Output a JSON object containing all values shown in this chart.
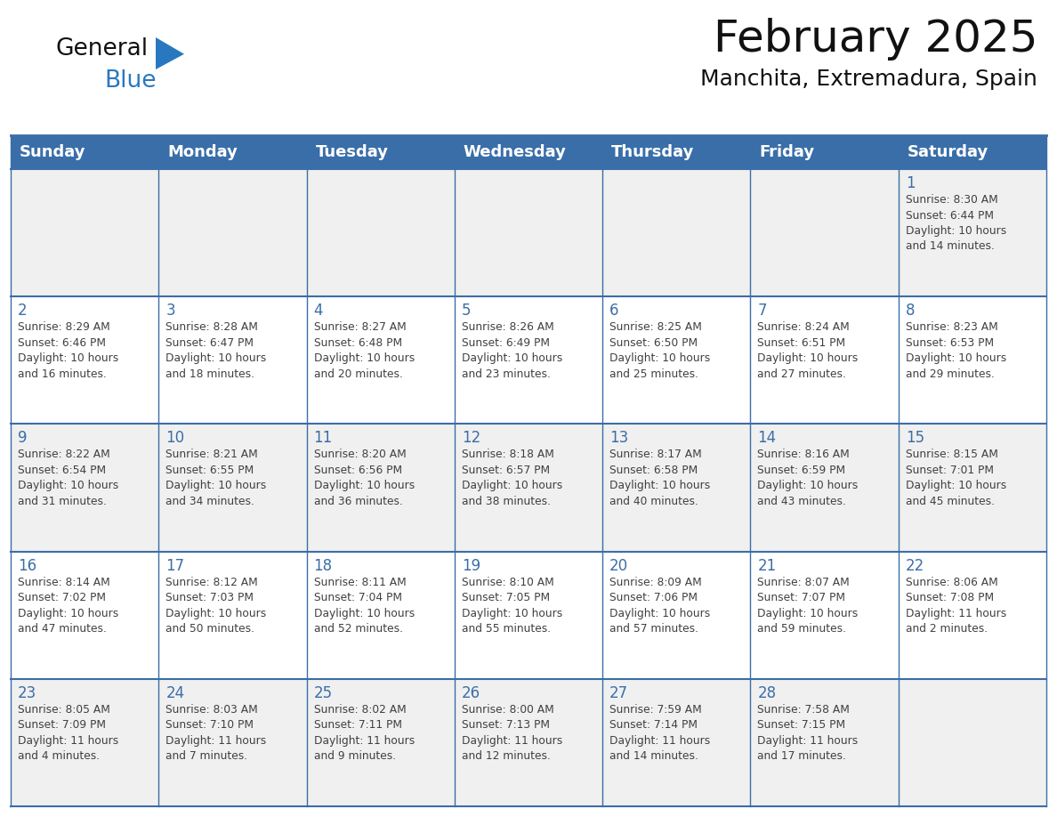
{
  "title": "February 2025",
  "subtitle": "Manchita, Extremadura, Spain",
  "days_of_week": [
    "Sunday",
    "Monday",
    "Tuesday",
    "Wednesday",
    "Thursday",
    "Friday",
    "Saturday"
  ],
  "header_bg": "#3a6ea8",
  "header_text": "#ffffff",
  "cell_bg_light": "#f0f0f0",
  "cell_bg_white": "#ffffff",
  "border_color": "#3a6ea8",
  "day_num_color": "#3a6ea8",
  "text_color": "#404040",
  "logo_general_color": "#111111",
  "logo_blue_color": "#2878c0",
  "logo_triangle_color": "#2878c0",
  "calendar_data": [
    [
      {
        "day": "",
        "info": ""
      },
      {
        "day": "",
        "info": ""
      },
      {
        "day": "",
        "info": ""
      },
      {
        "day": "",
        "info": ""
      },
      {
        "day": "",
        "info": ""
      },
      {
        "day": "",
        "info": ""
      },
      {
        "day": "1",
        "info": "Sunrise: 8:30 AM\nSunset: 6:44 PM\nDaylight: 10 hours\nand 14 minutes."
      }
    ],
    [
      {
        "day": "2",
        "info": "Sunrise: 8:29 AM\nSunset: 6:46 PM\nDaylight: 10 hours\nand 16 minutes."
      },
      {
        "day": "3",
        "info": "Sunrise: 8:28 AM\nSunset: 6:47 PM\nDaylight: 10 hours\nand 18 minutes."
      },
      {
        "day": "4",
        "info": "Sunrise: 8:27 AM\nSunset: 6:48 PM\nDaylight: 10 hours\nand 20 minutes."
      },
      {
        "day": "5",
        "info": "Sunrise: 8:26 AM\nSunset: 6:49 PM\nDaylight: 10 hours\nand 23 minutes."
      },
      {
        "day": "6",
        "info": "Sunrise: 8:25 AM\nSunset: 6:50 PM\nDaylight: 10 hours\nand 25 minutes."
      },
      {
        "day": "7",
        "info": "Sunrise: 8:24 AM\nSunset: 6:51 PM\nDaylight: 10 hours\nand 27 minutes."
      },
      {
        "day": "8",
        "info": "Sunrise: 8:23 AM\nSunset: 6:53 PM\nDaylight: 10 hours\nand 29 minutes."
      }
    ],
    [
      {
        "day": "9",
        "info": "Sunrise: 8:22 AM\nSunset: 6:54 PM\nDaylight: 10 hours\nand 31 minutes."
      },
      {
        "day": "10",
        "info": "Sunrise: 8:21 AM\nSunset: 6:55 PM\nDaylight: 10 hours\nand 34 minutes."
      },
      {
        "day": "11",
        "info": "Sunrise: 8:20 AM\nSunset: 6:56 PM\nDaylight: 10 hours\nand 36 minutes."
      },
      {
        "day": "12",
        "info": "Sunrise: 8:18 AM\nSunset: 6:57 PM\nDaylight: 10 hours\nand 38 minutes."
      },
      {
        "day": "13",
        "info": "Sunrise: 8:17 AM\nSunset: 6:58 PM\nDaylight: 10 hours\nand 40 minutes."
      },
      {
        "day": "14",
        "info": "Sunrise: 8:16 AM\nSunset: 6:59 PM\nDaylight: 10 hours\nand 43 minutes."
      },
      {
        "day": "15",
        "info": "Sunrise: 8:15 AM\nSunset: 7:01 PM\nDaylight: 10 hours\nand 45 minutes."
      }
    ],
    [
      {
        "day": "16",
        "info": "Sunrise: 8:14 AM\nSunset: 7:02 PM\nDaylight: 10 hours\nand 47 minutes."
      },
      {
        "day": "17",
        "info": "Sunrise: 8:12 AM\nSunset: 7:03 PM\nDaylight: 10 hours\nand 50 minutes."
      },
      {
        "day": "18",
        "info": "Sunrise: 8:11 AM\nSunset: 7:04 PM\nDaylight: 10 hours\nand 52 minutes."
      },
      {
        "day": "19",
        "info": "Sunrise: 8:10 AM\nSunset: 7:05 PM\nDaylight: 10 hours\nand 55 minutes."
      },
      {
        "day": "20",
        "info": "Sunrise: 8:09 AM\nSunset: 7:06 PM\nDaylight: 10 hours\nand 57 minutes."
      },
      {
        "day": "21",
        "info": "Sunrise: 8:07 AM\nSunset: 7:07 PM\nDaylight: 10 hours\nand 59 minutes."
      },
      {
        "day": "22",
        "info": "Sunrise: 8:06 AM\nSunset: 7:08 PM\nDaylight: 11 hours\nand 2 minutes."
      }
    ],
    [
      {
        "day": "23",
        "info": "Sunrise: 8:05 AM\nSunset: 7:09 PM\nDaylight: 11 hours\nand 4 minutes."
      },
      {
        "day": "24",
        "info": "Sunrise: 8:03 AM\nSunset: 7:10 PM\nDaylight: 11 hours\nand 7 minutes."
      },
      {
        "day": "25",
        "info": "Sunrise: 8:02 AM\nSunset: 7:11 PM\nDaylight: 11 hours\nand 9 minutes."
      },
      {
        "day": "26",
        "info": "Sunrise: 8:00 AM\nSunset: 7:13 PM\nDaylight: 11 hours\nand 12 minutes."
      },
      {
        "day": "27",
        "info": "Sunrise: 7:59 AM\nSunset: 7:14 PM\nDaylight: 11 hours\nand 14 minutes."
      },
      {
        "day": "28",
        "info": "Sunrise: 7:58 AM\nSunset: 7:15 PM\nDaylight: 11 hours\nand 17 minutes."
      },
      {
        "day": "",
        "info": ""
      }
    ]
  ],
  "fig_width": 11.88,
  "fig_height": 9.18,
  "dpi": 100
}
